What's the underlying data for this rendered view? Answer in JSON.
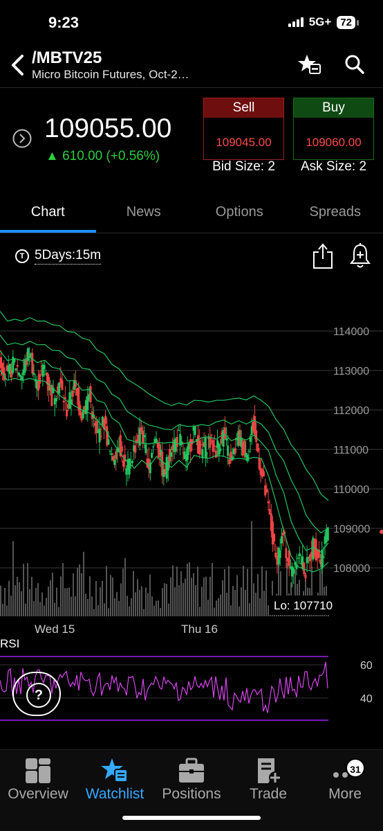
{
  "status_bar": {
    "time": "9:23",
    "network": "5G+",
    "battery": "72"
  },
  "header": {
    "symbol": "/MBTV25",
    "description": "Micro Bitcoin Futures, Oct-2…"
  },
  "quote": {
    "last": "109055.00",
    "change": "▲ 610.00 (+0.56%)"
  },
  "sell": {
    "label": "Sell",
    "price": "109045.00",
    "size": "Bid Size: 2"
  },
  "buy": {
    "label": "Buy",
    "price": "109060.00",
    "size": "Ask Size: 2"
  },
  "tabs": [
    "Chart",
    "News",
    "Options",
    "Spreads"
  ],
  "timeframe": {
    "icon_letter": "T",
    "label": "5Days:15m"
  },
  "chart_data": {
    "type": "line",
    "y_ticks": [
      "114000",
      "113000",
      "112000",
      "111000",
      "110000",
      "109000",
      "108000"
    ],
    "x_ticks": [
      "Wed 15",
      "Thu 16"
    ],
    "low_label": "Lo: 107710",
    "ylim": [
      107500,
      115000
    ],
    "series": [
      {
        "values": [
          113300,
          112800,
          113200,
          112900,
          113500,
          112600,
          113100,
          112300,
          112700,
          112000,
          112600,
          111900,
          112400,
          111300,
          111700,
          110700,
          111200,
          110400,
          111000,
          111500,
          110600,
          111400,
          110300,
          111100,
          111300,
          110700,
          111500,
          110900,
          111200,
          111000,
          111400,
          110600,
          111300,
          110900,
          111600,
          110500,
          109500,
          108200,
          108800,
          107900,
          108400,
          107900,
          108600,
          108200,
          109055
        ]
      }
    ],
    "rsi": {
      "label": "RSI",
      "ticks": [
        "60",
        "40"
      ]
    },
    "colors": {
      "up": "#22c55e",
      "down": "#ef4444",
      "ma": "#22c55e",
      "rsi": "#d946ef",
      "rsi_band": "#a020f0"
    }
  },
  "nav": [
    {
      "label": "Overview",
      "icon": "overview-icon"
    },
    {
      "label": "Watchlist",
      "icon": "watchlist-icon"
    },
    {
      "label": "Positions",
      "icon": "briefcase-icon"
    },
    {
      "label": "Trade",
      "icon": "trade-icon"
    },
    {
      "label": "More",
      "icon": "more-icon",
      "badge": "31"
    }
  ]
}
